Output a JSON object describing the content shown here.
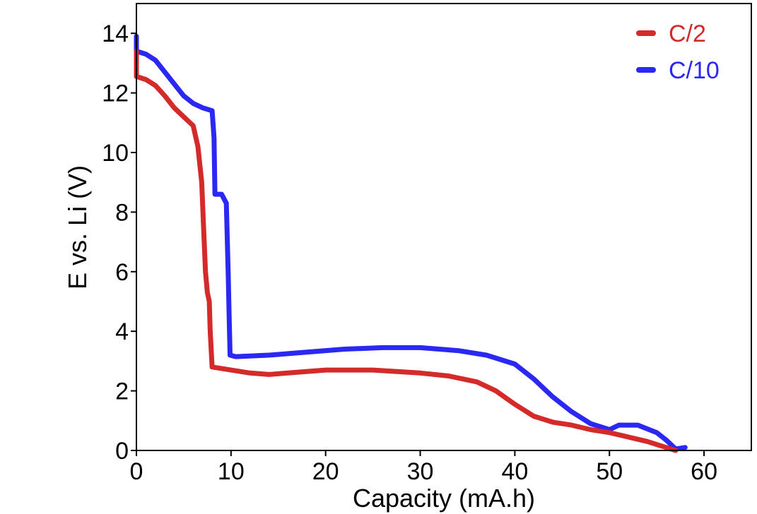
{
  "chart_data": {
    "type": "line",
    "title": "",
    "xlabel": "Capacity (mA.h)",
    "ylabel": "E vs. Li (V)",
    "xlim": [
      0,
      65
    ],
    "ylim": [
      0,
      15
    ],
    "xticks": [
      0,
      10,
      20,
      30,
      40,
      50,
      60
    ],
    "yticks": [
      0,
      2,
      4,
      6,
      8,
      10,
      12,
      14
    ],
    "grid": false,
    "legend_position": "top-right",
    "series": [
      {
        "name": "C/2",
        "color": "#d42a2a",
        "points": [
          [
            0,
            13.4
          ],
          [
            0,
            12.55
          ],
          [
            1,
            12.45
          ],
          [
            2,
            12.25
          ],
          [
            3,
            11.9
          ],
          [
            4,
            11.5
          ],
          [
            5,
            11.2
          ],
          [
            6,
            10.9
          ],
          [
            6.5,
            10.2
          ],
          [
            6.9,
            9.0
          ],
          [
            7.1,
            7.5
          ],
          [
            7.3,
            6.0
          ],
          [
            7.5,
            5.3
          ],
          [
            7.7,
            5.0
          ],
          [
            7.8,
            4.0
          ],
          [
            8.0,
            2.8
          ],
          [
            10,
            2.7
          ],
          [
            12,
            2.6
          ],
          [
            14,
            2.55
          ],
          [
            16,
            2.6
          ],
          [
            20,
            2.7
          ],
          [
            25,
            2.7
          ],
          [
            30,
            2.6
          ],
          [
            33,
            2.5
          ],
          [
            36,
            2.3
          ],
          [
            38,
            2.0
          ],
          [
            40,
            1.55
          ],
          [
            42,
            1.15
          ],
          [
            44,
            0.95
          ],
          [
            46,
            0.85
          ],
          [
            48,
            0.7
          ],
          [
            50,
            0.6
          ],
          [
            52,
            0.45
          ],
          [
            54,
            0.3
          ],
          [
            56,
            0.1
          ],
          [
            57,
            0.0
          ]
        ]
      },
      {
        "name": "C/10",
        "color": "#2a28f2",
        "points": [
          [
            0,
            13.9
          ],
          [
            0,
            13.4
          ],
          [
            1,
            13.3
          ],
          [
            2,
            13.1
          ],
          [
            3,
            12.7
          ],
          [
            4,
            12.3
          ],
          [
            5,
            11.9
          ],
          [
            6,
            11.65
          ],
          [
            7,
            11.5
          ],
          [
            8,
            11.4
          ],
          [
            8.2,
            10.5
          ],
          [
            8.3,
            8.6
          ],
          [
            9,
            8.6
          ],
          [
            9.5,
            8.3
          ],
          [
            9.7,
            6.0
          ],
          [
            9.8,
            4.5
          ],
          [
            9.9,
            3.2
          ],
          [
            10.5,
            3.15
          ],
          [
            14,
            3.2
          ],
          [
            18,
            3.3
          ],
          [
            22,
            3.4
          ],
          [
            26,
            3.45
          ],
          [
            30,
            3.45
          ],
          [
            34,
            3.35
          ],
          [
            37,
            3.2
          ],
          [
            40,
            2.9
          ],
          [
            42,
            2.4
          ],
          [
            44,
            1.8
          ],
          [
            46,
            1.3
          ],
          [
            48,
            0.9
          ],
          [
            50,
            0.7
          ],
          [
            51,
            0.85
          ],
          [
            53,
            0.85
          ],
          [
            55,
            0.6
          ],
          [
            56,
            0.35
          ],
          [
            57,
            0.05
          ],
          [
            58,
            0.1
          ]
        ]
      }
    ],
    "legend": [
      {
        "label": "C/2",
        "color": "#d42a2a"
      },
      {
        "label": "C/10",
        "color": "#2a28f2"
      }
    ]
  }
}
